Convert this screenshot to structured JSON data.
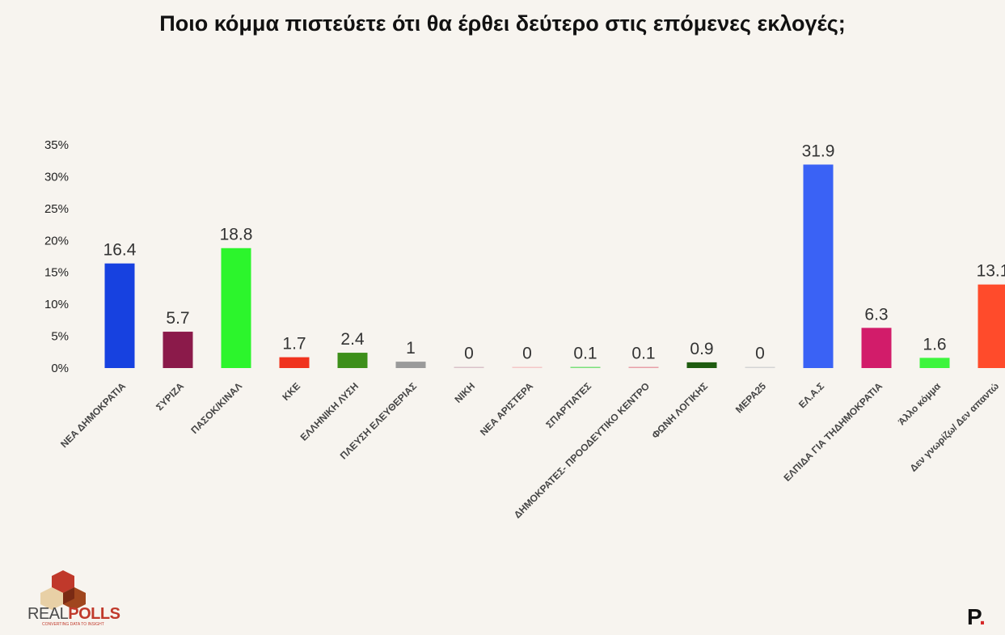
{
  "chart_data": {
    "type": "bar",
    "title": "Ποιο κόμμα πιστεύετε ότι θα έρθει δεύτερο στις επόμενες εκλογές;",
    "xlabel": "",
    "ylabel": "",
    "ylim": [
      0,
      35
    ],
    "yticks": [
      "0%",
      "5%",
      "10%",
      "15%",
      "20%",
      "25%",
      "30%",
      "35%"
    ],
    "grid": false,
    "legend": "none",
    "categories": [
      "ΝΕΑ ΔΗΜΟΚΡΑΤΙΑ",
      "ΣΥΡΙΖΑ",
      "ΠΑΣΟΚ/ΚΙΝΑΛ",
      "ΚΚΕ",
      "ΕΛΛΗΝΙΚΗ ΛΥΣΗ",
      "ΠΛΕΥΣΗ ΕΛΕΥΘΕΡΙΑΣ",
      "ΝΙΚΗ",
      "ΝΕΑ ΑΡΙΣΤΕΡΑ",
      "ΣΠΑΡΤΙΑΤΕΣ",
      "ΔΗΜΟΚΡΑΤΕΣ- ΠΡΟΟΔΕΥΤΙΚΟ ΚΕΝΤΡΟ",
      "ΦΩΝΗ ΛΟΓΙΚΗΣ",
      "ΜΕΡΑ25",
      "ΕΛ.Α.Σ",
      "ΕΛΠΙΔΑ ΓΙΑ ΤΗΔΗΜΟΚΡΑΤΙΑ",
      "Άλλο κόμμα",
      "Δεν γνωρίζω/ Δεν απαντώ"
    ],
    "values": [
      16.4,
      5.7,
      18.8,
      1.7,
      2.4,
      1,
      0,
      0,
      0.1,
      0.1,
      0.9,
      0,
      31.9,
      6.3,
      1.6,
      13.1
    ],
    "value_labels": [
      "16.4",
      "5.7",
      "18.8",
      "1.7",
      "2.4",
      "1",
      "0",
      "0",
      "0.1",
      "0.1",
      "0.9",
      "0",
      "31.9",
      "6.3",
      "1.6",
      "13.1"
    ],
    "colors": [
      "#1741e0",
      "#8b1a4a",
      "#2cf52c",
      "#f0331e",
      "#3d8f1a",
      "#9a9a9a",
      "#d9c2c8",
      "#f4c7c7",
      "#7be07b",
      "#e8a0a8",
      "#1f5c10",
      "#d4d4d4",
      "#3a62f5",
      "#d21c6a",
      "#3df53d",
      "#ff4b2b"
    ]
  },
  "logos": {
    "realpolls_left": "REAL",
    "realpolls_right": "POLLS",
    "realpolls_tagline": "CONVERTING DATA TO INSIGHT",
    "publisher_letter": "P",
    "publisher_dot": "."
  }
}
